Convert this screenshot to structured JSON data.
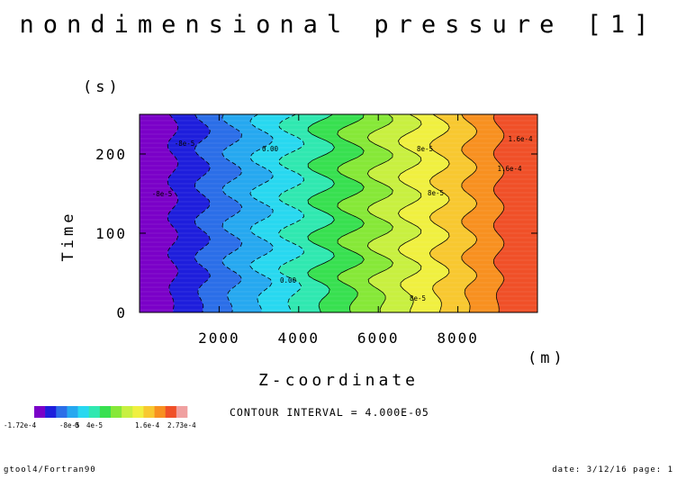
{
  "chart_data": {
    "type": "heatmap",
    "title": "nondimensional pressure [1]",
    "xlabel": "Z-coordinate",
    "xunit": "(m)",
    "ylabel": "Time",
    "yunit": "(s)",
    "xlim": [
      0,
      10000
    ],
    "ylim": [
      0,
      250
    ],
    "xticks": [
      2000,
      4000,
      6000,
      8000
    ],
    "yticks": [
      0,
      100,
      200
    ],
    "xtick_labels": [
      "2000",
      "4000",
      "6000",
      "8000"
    ],
    "ytick_labels": [
      "0",
      "100",
      "200"
    ],
    "contour_interval_text": "CONTOUR INTERVAL = 4.000E-05",
    "colorbar": {
      "colors": [
        "#7a00c8",
        "#1e1edc",
        "#2b6ee8",
        "#26a8f0",
        "#28d8f0",
        "#30e8b0",
        "#38e050",
        "#86e838",
        "#c8f040",
        "#f0f040",
        "#f8c830",
        "#f89020",
        "#f05028",
        "#f0a0a0"
      ],
      "labels": [
        "-1.72e-4",
        "-8e-5",
        "0",
        "4e-5",
        "1.6e-4",
        "2.73e-4"
      ]
    },
    "contour_labels": [
      "0.00",
      "-8e-5",
      "8e-5",
      "1.6e-4"
    ]
  },
  "footer": {
    "left": "gtool4/Fortran90",
    "right": "date: 3/12/16 page: 1"
  }
}
